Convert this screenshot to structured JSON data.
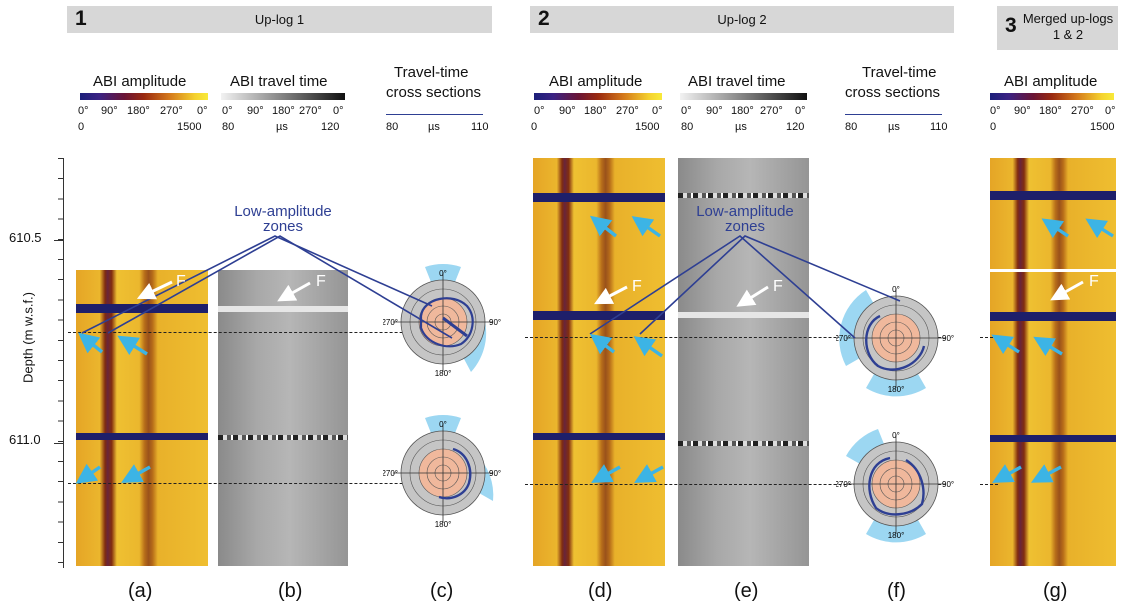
{
  "sections": [
    {
      "num": "1",
      "title": "Up-log 1"
    },
    {
      "num": "2",
      "title": "Up-log 2"
    },
    {
      "num": "3",
      "title": "Merged up-logs 1 & 2"
    }
  ],
  "colorbar_titles": {
    "amp": "ABI amplitude",
    "tt": "ABI travel time",
    "xs_l1": "Travel-time",
    "xs_l2": "cross sections"
  },
  "amp_ticks": {
    "t0": "0°",
    "t90": "90°",
    "t180": "180°",
    "t270": "270°",
    "t360": "0°",
    "min": "0",
    "max": "1500"
  },
  "tt_ticks": {
    "t0": "0°",
    "t90": "90°",
    "t180": "180°",
    "t270": "270°",
    "t360": "0°",
    "min": "80",
    "unit": "µs",
    "max": "120"
  },
  "xs_ticks": {
    "min": "80",
    "unit": "µs",
    "max": "110"
  },
  "depth_axis": {
    "label": "Depth (m w.s.f.)",
    "ticks": [
      "610.5",
      "611.0"
    ]
  },
  "annotation": {
    "line1": "Low-amplitude",
    "line2": "zones"
  },
  "fracture_label": "F",
  "polar_labels": {
    "top": "0°",
    "right": "90°",
    "bottom": "180°",
    "left": "270°"
  },
  "panel_labels": [
    "(a)",
    "(b)",
    "(c)",
    "(d)",
    "(e)",
    "(f)",
    "(g)"
  ],
  "colors": {
    "accent_blue": "#2e3f93",
    "arrow_cyan": "#3cb4e5",
    "header_gray": "#d7d7d7",
    "polar_fill": "#c5c5c5",
    "polar_core": "#f0b89c",
    "polar_halo": "#9cd7f2"
  }
}
